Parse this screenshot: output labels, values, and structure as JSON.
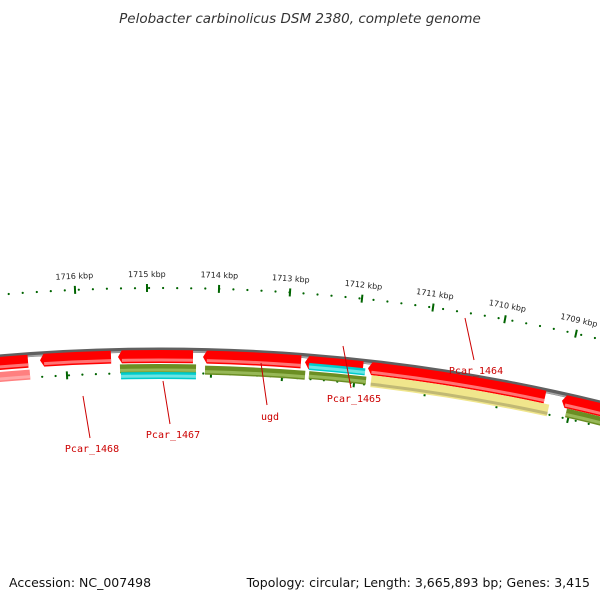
{
  "title": "Pelobacter carbinolicus DSM 2380, complete genome",
  "colors": {
    "gene_red": "#ff0000",
    "gene_pink": "#ff8080",
    "olive": "#6b8e23",
    "cyan": "#00cccc",
    "khaki": "#f0e68c",
    "backbone": "#808080",
    "ticks": "#006400",
    "label": "#cc0000"
  },
  "ruler_ticks": [
    {
      "label": "1709 kbp"
    },
    {
      "label": "1710 kbp"
    },
    {
      "label": "1711 kbp"
    },
    {
      "label": "1712 kbp"
    },
    {
      "label": "1713 kbp"
    },
    {
      "label": "1714 kbp"
    },
    {
      "label": "1715 kbp"
    },
    {
      "label": "1716 kbp"
    }
  ],
  "gene_labels": [
    "Pcar_1464",
    "Pcar_1465",
    "ugd",
    "Pcar_1467",
    "Pcar_1468"
  ],
  "footer": {
    "accession": "Accession: NC_007498",
    "topology": "Topology: circular; Length: 3,665,893 bp; Genes: 3,415"
  }
}
